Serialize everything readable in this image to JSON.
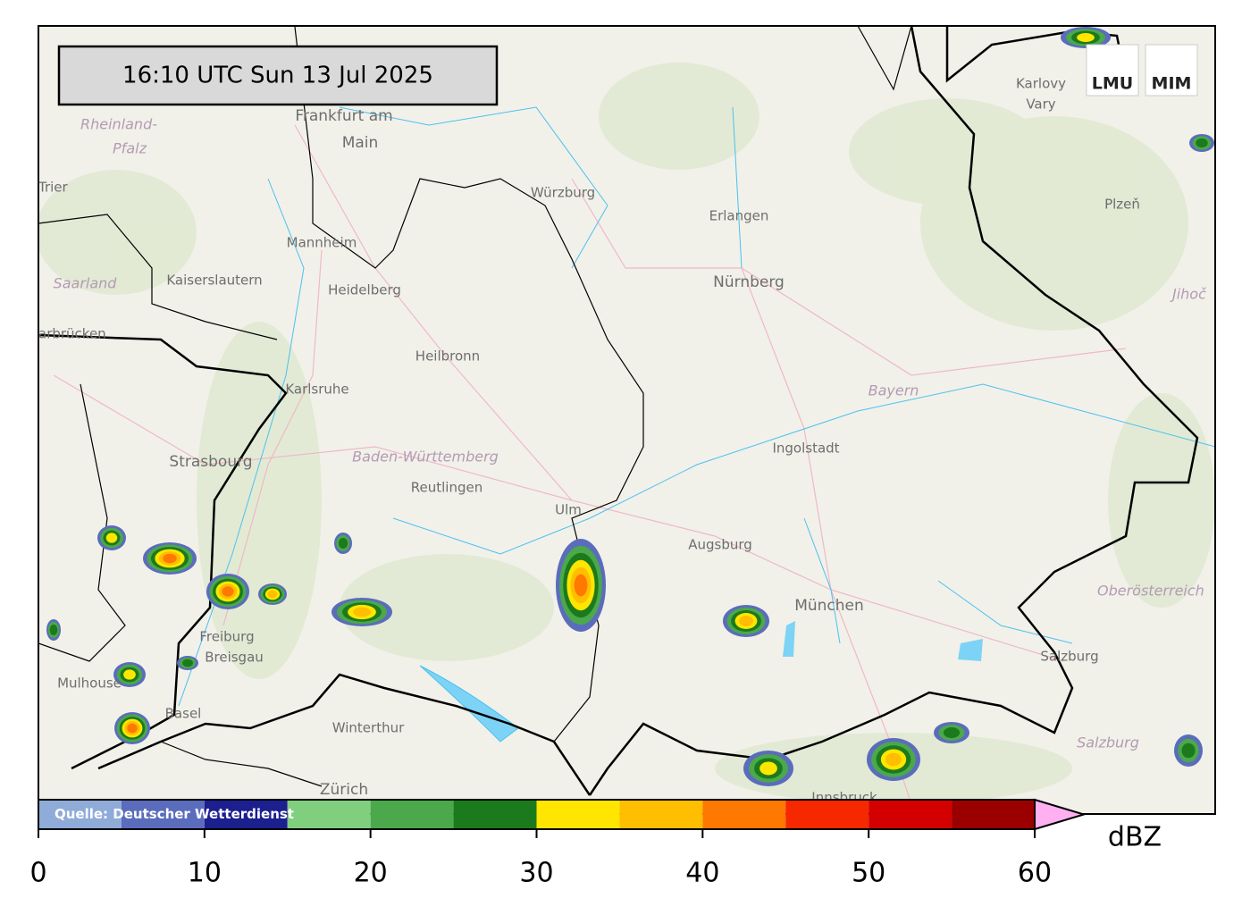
{
  "timestamp": "16:10 UTC  Sun 13 Jul 2025",
  "logos": [
    "LMU",
    "MIM"
  ],
  "map": {
    "labels": [
      "Frankfurt am",
      "Main",
      "Rheinland-",
      "Pfalz",
      "Trier",
      "Mannheim",
      "Kaiserslautern",
      "Heidelberg",
      "Saarland",
      "arbrücken",
      "Karlsruhe",
      "Heilbronn",
      "Würzburg",
      "Erlangen",
      "Nürnberg",
      "Karlovy",
      "Vary",
      "Plzeň",
      "Jihoč",
      "Bayern",
      "Ingolstadt",
      "Baden-Württemberg",
      "Reutlingen",
      "Strasbourg",
      "Ulm",
      "Augsburg",
      "München",
      "Oberösterreich",
      "Freiburg",
      "Breisgau",
      "Mulhouse",
      "Basel",
      "Winterthur",
      "Salzburg",
      "Salzburg",
      "Zürich",
      "Innsbruck"
    ]
  },
  "chart_data": {
    "type": "colorbar",
    "bins": [
      0,
      5,
      10,
      15,
      20,
      25,
      30,
      35,
      40,
      45,
      50,
      55,
      60
    ],
    "colors": [
      "#8fabd8",
      "#5b6cbc",
      "#1c1f8e",
      "#7fcf7f",
      "#4ba84b",
      "#1b7a1b",
      "#ffe600",
      "#ffbe00",
      "#ff7800",
      "#f52800",
      "#d40000",
      "#9a0000"
    ],
    "extend_color": "#ffb0f0",
    "xlim": [
      0,
      60
    ],
    "xticks": [
      0,
      10,
      20,
      30,
      40,
      50,
      60
    ],
    "label": "dBZ",
    "source": "Quelle: Deutscher Wetterdienst"
  }
}
